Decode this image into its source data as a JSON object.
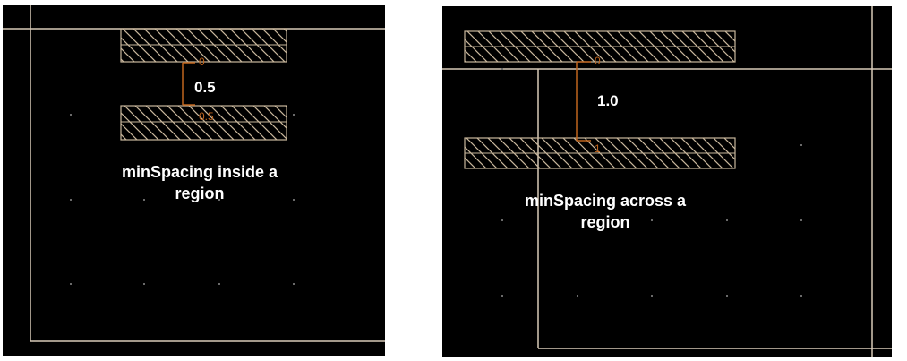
{
  "colors": {
    "background": "#000000",
    "boundary": "#d8cbb8",
    "shape": "#c9b79c",
    "ruler": "#c0651e",
    "text": "#ffffff",
    "dot": "#6a6a6a"
  },
  "left": {
    "spacing_value": "0.5",
    "ruler_top_label": "0",
    "ruler_bottom_label": "0.5",
    "caption_line1": "minSpacing inside a",
    "caption_line2": "region"
  },
  "right": {
    "spacing_value": "1.0",
    "ruler_top_label": "0",
    "ruler_bottom_label": "1",
    "caption_line1": "minSpacing across a",
    "caption_line2": "region"
  }
}
